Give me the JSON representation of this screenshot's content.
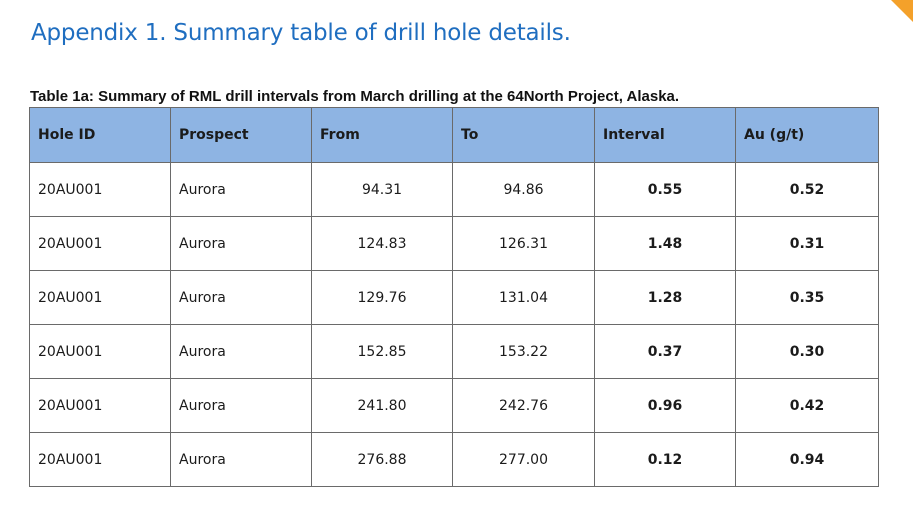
{
  "heading": "Appendix 1. Summary table of drill hole details.",
  "caption": "Table 1a: Summary of RML drill intervals from March drilling at the 64North Project, Alaska.",
  "accent_color": "#f4a12a",
  "header_color": "#8eb4e3",
  "columns": [
    "Hole ID",
    "Prospect",
    "From",
    "To",
    "Interval",
    "Au (g/t)"
  ],
  "rows": [
    {
      "hole_id": "20AU001",
      "prospect": "Aurora",
      "from": "94.31",
      "to": "94.86",
      "interval": "0.55",
      "au": "0.52"
    },
    {
      "hole_id": "20AU001",
      "prospect": "Aurora",
      "from": "124.83",
      "to": "126.31",
      "interval": "1.48",
      "au": "0.31"
    },
    {
      "hole_id": "20AU001",
      "prospect": "Aurora",
      "from": "129.76",
      "to": "131.04",
      "interval": "1.28",
      "au": "0.35"
    },
    {
      "hole_id": "20AU001",
      "prospect": "Aurora",
      "from": "152.85",
      "to": "153.22",
      "interval": "0.37",
      "au": "0.30"
    },
    {
      "hole_id": "20AU001",
      "prospect": "Aurora",
      "from": "241.80",
      "to": "242.76",
      "interval": "0.96",
      "au": "0.42"
    },
    {
      "hole_id": "20AU001",
      "prospect": "Aurora",
      "from": "276.88",
      "to": "277.00",
      "interval": "0.12",
      "au": "0.94"
    }
  ]
}
